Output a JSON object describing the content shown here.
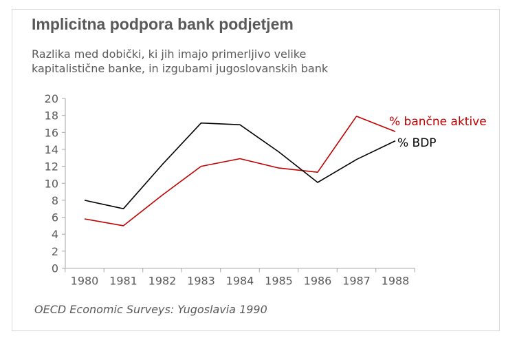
{
  "title": "Implicitna podpora bank podjetjem",
  "subtitle_lines": [
    "Razlika med dobički, ki jih imajo primerljivo velike",
    "kapitalistične banke, in izgubami jugoslovanskih bank"
  ],
  "source": "OECD Economic Surveys: Yugoslavia 1990",
  "chart_data": {
    "type": "line",
    "categories": [
      "1980",
      "1981",
      "1982",
      "1983",
      "1984",
      "1985",
      "1986",
      "1987",
      "1988"
    ],
    "series": [
      {
        "name": "% bančne aktive",
        "color": "#c00000",
        "values": [
          5.8,
          5.0,
          8.6,
          12.0,
          12.9,
          11.8,
          11.3,
          17.9,
          16.1
        ]
      },
      {
        "name": "% BDP",
        "color": "#000000",
        "values": [
          8.0,
          7.0,
          12.2,
          17.1,
          16.9,
          13.7,
          10.1,
          12.8,
          15.0
        ]
      }
    ],
    "ylim": [
      0,
      20
    ],
    "yticks": [
      "0",
      "2",
      "4",
      "6",
      "8",
      "10",
      "12",
      "14",
      "16",
      "18",
      "20"
    ],
    "grid": false,
    "legend": "direct labels at line ends",
    "xlabel": "",
    "ylabel": ""
  }
}
